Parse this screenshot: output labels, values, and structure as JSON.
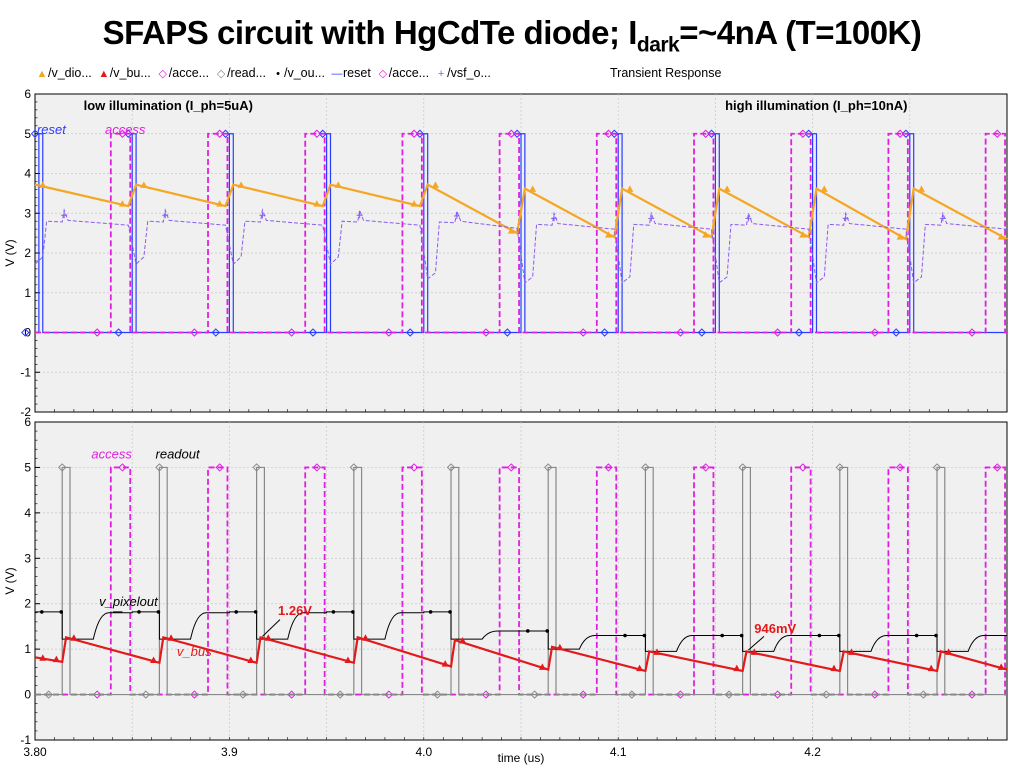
{
  "title": {
    "main": "SFAPS circuit with HgCdTe diode; I",
    "sub": "dark",
    "rest": "=~4nA (T=100K)"
  },
  "legend": {
    "items": [
      {
        "label": "/v_dio...",
        "symbol": "▲",
        "color": "#f5a623"
      },
      {
        "label": "/v_bu...",
        "symbol": "▲",
        "color": "#e31a1c"
      },
      {
        "label": "/acce...",
        "symbol": "◇",
        "color": "#e020e0"
      },
      {
        "label": "/read...",
        "symbol": "◇",
        "color": "#888888"
      },
      {
        "label": "/v_ou...",
        "symbol": "•",
        "color": "#000000"
      },
      {
        "label": "reset",
        "symbol": "—",
        "color": "#2a3cff"
      },
      {
        "label": "/acce...",
        "symbol": "◇",
        "color": "#e020e0"
      },
      {
        "label": "/vsf_o...",
        "symbol": "+",
        "color": "#8a5cf0"
      }
    ],
    "caption": "Transient Response"
  },
  "chart_data": [
    {
      "type": "line",
      "ylabel": "V (V)",
      "ylim": [
        -2,
        6
      ],
      "yticks": [
        "6",
        "5",
        "4",
        "3",
        "2",
        "1",
        "0",
        "-1",
        "-2"
      ],
      "grid": true,
      "annotations": [
        {
          "text": "low illumination (I_ph=5uA)",
          "x": 3.825,
          "y": 5.6
        },
        {
          "text": "high illumination (I_ph=10nA)",
          "x": 4.155,
          "y": 5.6
        },
        {
          "text": "reset",
          "x": 3.801,
          "y": 5.0,
          "color": "#2a3cff"
        },
        {
          "text": "access",
          "x": 3.836,
          "y": 5.0,
          "color": "#e020e0"
        }
      ],
      "series": [
        {
          "color": "#2a3cff",
          "kind": "pulse",
          "low": 0,
          "high": 5,
          "pulses": [
            [
              3.802,
              3.804
            ],
            [
              3.85,
              3.852
            ],
            [
              3.9,
              3.902
            ],
            [
              3.95,
              3.952
            ],
            [
              4.0,
              4.002
            ],
            [
              4.05,
              4.052
            ],
            [
              4.1,
              4.102
            ],
            [
              4.15,
              4.152
            ],
            [
              4.2,
              4.202
            ],
            [
              4.25,
              4.252
            ]
          ]
        },
        {
          "color": "#e020e0",
          "kind": "pulse-dashed",
          "low": 0,
          "high": 5,
          "pulses": [
            [
              3.839,
              3.849
            ],
            [
              3.889,
              3.899
            ],
            [
              3.939,
              3.949
            ],
            [
              3.989,
              3.999
            ],
            [
              4.039,
              4.049
            ],
            [
              4.089,
              4.099
            ],
            [
              4.139,
              4.149
            ],
            [
              4.189,
              4.199
            ],
            [
              4.239,
              4.249
            ],
            [
              4.289,
              4.299
            ]
          ]
        },
        {
          "color": "#f5a623",
          "kind": "sawtooth",
          "segments": [
            [
              3.8,
              3.72,
              3.848,
              3.18
            ],
            [
              3.852,
              3.72,
              3.898,
              3.18
            ],
            [
              3.902,
              3.72,
              3.948,
              3.18
            ],
            [
              3.952,
              3.72,
              3.998,
              3.18
            ],
            [
              4.002,
              3.72,
              4.048,
              2.5
            ],
            [
              4.052,
              3.62,
              4.098,
              2.4
            ],
            [
              4.102,
              3.62,
              4.148,
              2.4
            ],
            [
              4.152,
              3.62,
              4.198,
              2.4
            ],
            [
              4.202,
              3.62,
              4.248,
              2.35
            ],
            [
              4.252,
              3.62,
              4.3,
              2.35
            ]
          ]
        },
        {
          "color": "#8a5cf0",
          "kind": "vsf",
          "segments": [
            [
              3.8,
              2.8,
              3.848,
              2.7,
              1.72,
              1.9
            ],
            [
              3.852,
              2.8,
              3.898,
              2.7,
              1.72,
              1.9
            ],
            [
              3.902,
              2.8,
              3.948,
              2.7,
              1.72,
              1.9
            ],
            [
              3.952,
              2.8,
              3.998,
              2.7,
              1.72,
              1.9
            ],
            [
              4.002,
              2.78,
              4.048,
              2.62,
              1.35,
              1.5
            ],
            [
              4.052,
              2.72,
              4.098,
              2.6,
              1.25,
              1.4
            ],
            [
              4.102,
              2.72,
              4.148,
              2.6,
              1.25,
              1.4
            ],
            [
              4.152,
              2.72,
              4.198,
              2.6,
              1.25,
              1.4
            ],
            [
              4.202,
              2.72,
              4.248,
              2.6,
              1.25,
              1.4
            ],
            [
              4.252,
              2.72,
              4.3,
              2.6,
              1.25,
              1.4
            ]
          ]
        }
      ]
    },
    {
      "type": "line",
      "ylabel": "V (V)",
      "xlabel": "time (us)",
      "ylim": [
        -1,
        6
      ],
      "xlim": [
        3.8,
        4.3
      ],
      "yticks": [
        "6",
        "5",
        "4",
        "3",
        "2",
        "1",
        "0",
        "-1"
      ],
      "xticks": [
        {
          "v": 3.8,
          "label": "3.80"
        },
        {
          "v": 3.9,
          "label": "3.9"
        },
        {
          "v": 4.0,
          "label": "4.0"
        },
        {
          "v": 4.1,
          "label": "4.1"
        },
        {
          "v": 4.2,
          "label": "4.2"
        }
      ],
      "grid": true,
      "annotations": [
        {
          "text": "access",
          "x": 3.829,
          "y": 5.2,
          "color": "#e020e0"
        },
        {
          "text": "readout",
          "x": 3.862,
          "y": 5.2,
          "color": "#000000"
        },
        {
          "text": "v_pixelout",
          "x": 3.833,
          "y": 1.95,
          "color": "#000000"
        },
        {
          "text": "v_bus",
          "x": 3.873,
          "y": 0.85,
          "color": "#e31a1c"
        },
        {
          "text": "1.26V",
          "x": 3.925,
          "y": 1.75,
          "color": "#e31a1c",
          "bold": true
        },
        {
          "text": "946mV",
          "x": 4.17,
          "y": 1.35,
          "color": "#e31a1c",
          "bold": true
        }
      ],
      "series": [
        {
          "color": "#e020e0",
          "kind": "pulse-dashed",
          "low": 0,
          "high": 5,
          "pulses": [
            [
              3.839,
              3.849
            ],
            [
              3.889,
              3.899
            ],
            [
              3.939,
              3.949
            ],
            [
              3.989,
              3.999
            ],
            [
              4.039,
              4.049
            ],
            [
              4.089,
              4.099
            ],
            [
              4.139,
              4.149
            ],
            [
              4.189,
              4.199
            ],
            [
              4.239,
              4.249
            ],
            [
              4.289,
              4.299
            ]
          ]
        },
        {
          "color": "#888888",
          "kind": "pulse",
          "low": 0,
          "high": 5,
          "pulses": [
            [
              3.814,
              3.818
            ],
            [
              3.864,
              3.868
            ],
            [
              3.914,
              3.918
            ],
            [
              3.964,
              3.968
            ],
            [
              4.014,
              4.018
            ],
            [
              4.064,
              4.068
            ],
            [
              4.114,
              4.118
            ],
            [
              4.164,
              4.168
            ],
            [
              4.214,
              4.218
            ],
            [
              4.264,
              4.268
            ]
          ]
        },
        {
          "color": "#000000",
          "kind": "pixelout",
          "segments": [
            [
              3.8,
              1.82,
              1.22,
              1.8
            ],
            [
              3.85,
              1.82,
              1.22,
              1.8
            ],
            [
              3.9,
              1.82,
              1.22,
              1.8
            ],
            [
              3.95,
              1.82,
              1.22,
              1.8
            ],
            [
              4.0,
              1.82,
              1.22,
              1.4
            ],
            [
              4.05,
              1.4,
              1.0,
              1.3
            ],
            [
              4.1,
              1.3,
              0.95,
              1.3
            ],
            [
              4.15,
              1.3,
              0.95,
              1.3
            ],
            [
              4.2,
              1.3,
              0.95,
              1.3
            ],
            [
              4.25,
              1.3,
              0.95,
              1.3
            ]
          ]
        },
        {
          "color": "#e31a1c",
          "kind": "sawtooth",
          "segments": [
            [
              3.8,
              0.82,
              3.814,
              0.72
            ],
            [
              3.816,
              1.26,
              3.864,
              0.7
            ],
            [
              3.866,
              1.26,
              3.914,
              0.7
            ],
            [
              3.916,
              1.26,
              3.964,
              0.7
            ],
            [
              3.966,
              1.26,
              4.014,
              0.62
            ],
            [
              4.016,
              1.2,
              4.064,
              0.55
            ],
            [
              4.066,
              1.05,
              4.114,
              0.52
            ],
            [
              4.116,
              0.95,
              4.164,
              0.52
            ],
            [
              4.166,
              0.95,
              4.214,
              0.52
            ],
            [
              4.216,
              0.95,
              4.264,
              0.52
            ],
            [
              4.266,
              0.95,
              4.3,
              0.55
            ]
          ]
        }
      ]
    }
  ]
}
